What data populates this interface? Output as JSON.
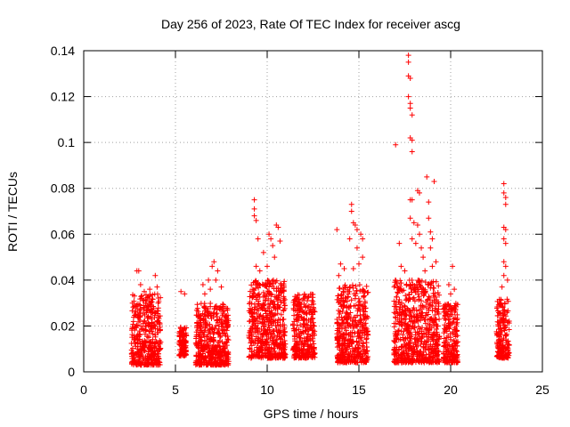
{
  "chart_data": {
    "type": "scatter",
    "title": "Day 256 of 2023, Rate Of TEC Index for receiver ascg",
    "xlabel": "GPS time / hours",
    "ylabel": "ROTI / TECUs",
    "xlim": [
      0,
      25
    ],
    "ylim": [
      0,
      0.14
    ],
    "xticks": [
      "0",
      "5",
      "10",
      "15",
      "20",
      "25"
    ],
    "yticks": [
      "0",
      "0.02",
      "0.04",
      "0.06",
      "0.08",
      "0.1",
      "0.12",
      "0.14"
    ],
    "grid": true,
    "marker": "plus",
    "color": "#ff0000",
    "clusters": [
      {
        "x": [
          2.6,
          4.2
        ],
        "y": [
          0.003,
          0.034
        ]
      },
      {
        "x": [
          5.2,
          5.6
        ],
        "y": [
          0.007,
          0.02
        ]
      },
      {
        "x": [
          6.1,
          7.9
        ],
        "y": [
          0.003,
          0.03
        ]
      },
      {
        "x": [
          9.0,
          11.0
        ],
        "y": [
          0.006,
          0.04
        ]
      },
      {
        "x": [
          11.4,
          12.6
        ],
        "y": [
          0.006,
          0.034
        ]
      },
      {
        "x": [
          13.8,
          15.5
        ],
        "y": [
          0.004,
          0.038
        ]
      },
      {
        "x": [
          16.9,
          19.4
        ],
        "y": [
          0.004,
          0.04
        ]
      },
      {
        "x": [
          19.6,
          20.4
        ],
        "y": [
          0.004,
          0.03
        ]
      },
      {
        "x": [
          22.5,
          23.2
        ],
        "y": [
          0.006,
          0.032
        ]
      }
    ],
    "points": [
      [
        2.9,
        0.044
      ],
      [
        3.0,
        0.044
      ],
      [
        3.1,
        0.038
      ],
      [
        3.6,
        0.036
      ],
      [
        3.9,
        0.042
      ],
      [
        4.0,
        0.037
      ],
      [
        3.3,
        0.035
      ],
      [
        5.3,
        0.035
      ],
      [
        5.5,
        0.034
      ],
      [
        5.4,
        0.017
      ],
      [
        6.5,
        0.038
      ],
      [
        6.8,
        0.04
      ],
      [
        7.0,
        0.046
      ],
      [
        7.1,
        0.048
      ],
      [
        7.3,
        0.044
      ],
      [
        7.5,
        0.037
      ],
      [
        6.6,
        0.034
      ],
      [
        6.9,
        0.036
      ],
      [
        7.2,
        0.04
      ],
      [
        9.3,
        0.075
      ],
      [
        9.3,
        0.071
      ],
      [
        9.3,
        0.068
      ],
      [
        9.4,
        0.066
      ],
      [
        9.5,
        0.058
      ],
      [
        9.4,
        0.046
      ],
      [
        10.1,
        0.06
      ],
      [
        10.2,
        0.058
      ],
      [
        10.5,
        0.064
      ],
      [
        10.6,
        0.063
      ],
      [
        10.7,
        0.057
      ],
      [
        10.3,
        0.055
      ],
      [
        9.8,
        0.052
      ],
      [
        10.4,
        0.05
      ],
      [
        10.0,
        0.046
      ],
      [
        9.6,
        0.044
      ],
      [
        13.8,
        0.062
      ],
      [
        14.0,
        0.047
      ],
      [
        14.2,
        0.045
      ],
      [
        13.9,
        0.042
      ],
      [
        14.6,
        0.073
      ],
      [
        14.6,
        0.07
      ],
      [
        14.7,
        0.065
      ],
      [
        14.8,
        0.064
      ],
      [
        14.9,
        0.062
      ],
      [
        14.5,
        0.058
      ],
      [
        14.9,
        0.054
      ],
      [
        15.1,
        0.06
      ],
      [
        15.2,
        0.058
      ],
      [
        15.2,
        0.05
      ],
      [
        15.0,
        0.047
      ],
      [
        14.7,
        0.045
      ],
      [
        17.0,
        0.099
      ],
      [
        17.2,
        0.056
      ],
      [
        17.3,
        0.046
      ],
      [
        17.5,
        0.044
      ],
      [
        17.7,
        0.138
      ],
      [
        17.7,
        0.135
      ],
      [
        17.7,
        0.129
      ],
      [
        17.8,
        0.128
      ],
      [
        17.7,
        0.12
      ],
      [
        17.8,
        0.117
      ],
      [
        17.8,
        0.115
      ],
      [
        17.9,
        0.112
      ],
      [
        17.8,
        0.102
      ],
      [
        17.9,
        0.101
      ],
      [
        17.9,
        0.096
      ],
      [
        17.8,
        0.075
      ],
      [
        17.9,
        0.075
      ],
      [
        17.8,
        0.067
      ],
      [
        18.0,
        0.065
      ],
      [
        17.9,
        0.058
      ],
      [
        18.2,
        0.079
      ],
      [
        18.3,
        0.078
      ],
      [
        18.2,
        0.064
      ],
      [
        18.3,
        0.06
      ],
      [
        18.1,
        0.056
      ],
      [
        18.4,
        0.054
      ],
      [
        18.5,
        0.05
      ],
      [
        18.7,
        0.085
      ],
      [
        18.8,
        0.074
      ],
      [
        18.8,
        0.067
      ],
      [
        18.9,
        0.061
      ],
      [
        19.0,
        0.058
      ],
      [
        19.1,
        0.083
      ],
      [
        18.9,
        0.054
      ],
      [
        19.2,
        0.048
      ],
      [
        19.0,
        0.046
      ],
      [
        18.6,
        0.044
      ],
      [
        20.1,
        0.046
      ],
      [
        19.9,
        0.038
      ],
      [
        20.2,
        0.036
      ],
      [
        20.0,
        0.034
      ],
      [
        22.9,
        0.082
      ],
      [
        22.9,
        0.078
      ],
      [
        23.0,
        0.076
      ],
      [
        23.0,
        0.073
      ],
      [
        22.9,
        0.063
      ],
      [
        23.0,
        0.062
      ],
      [
        22.9,
        0.058
      ],
      [
        23.0,
        0.056
      ],
      [
        22.9,
        0.048
      ],
      [
        23.0,
        0.046
      ],
      [
        22.9,
        0.042
      ],
      [
        23.1,
        0.04
      ],
      [
        22.8,
        0.037
      ]
    ]
  }
}
